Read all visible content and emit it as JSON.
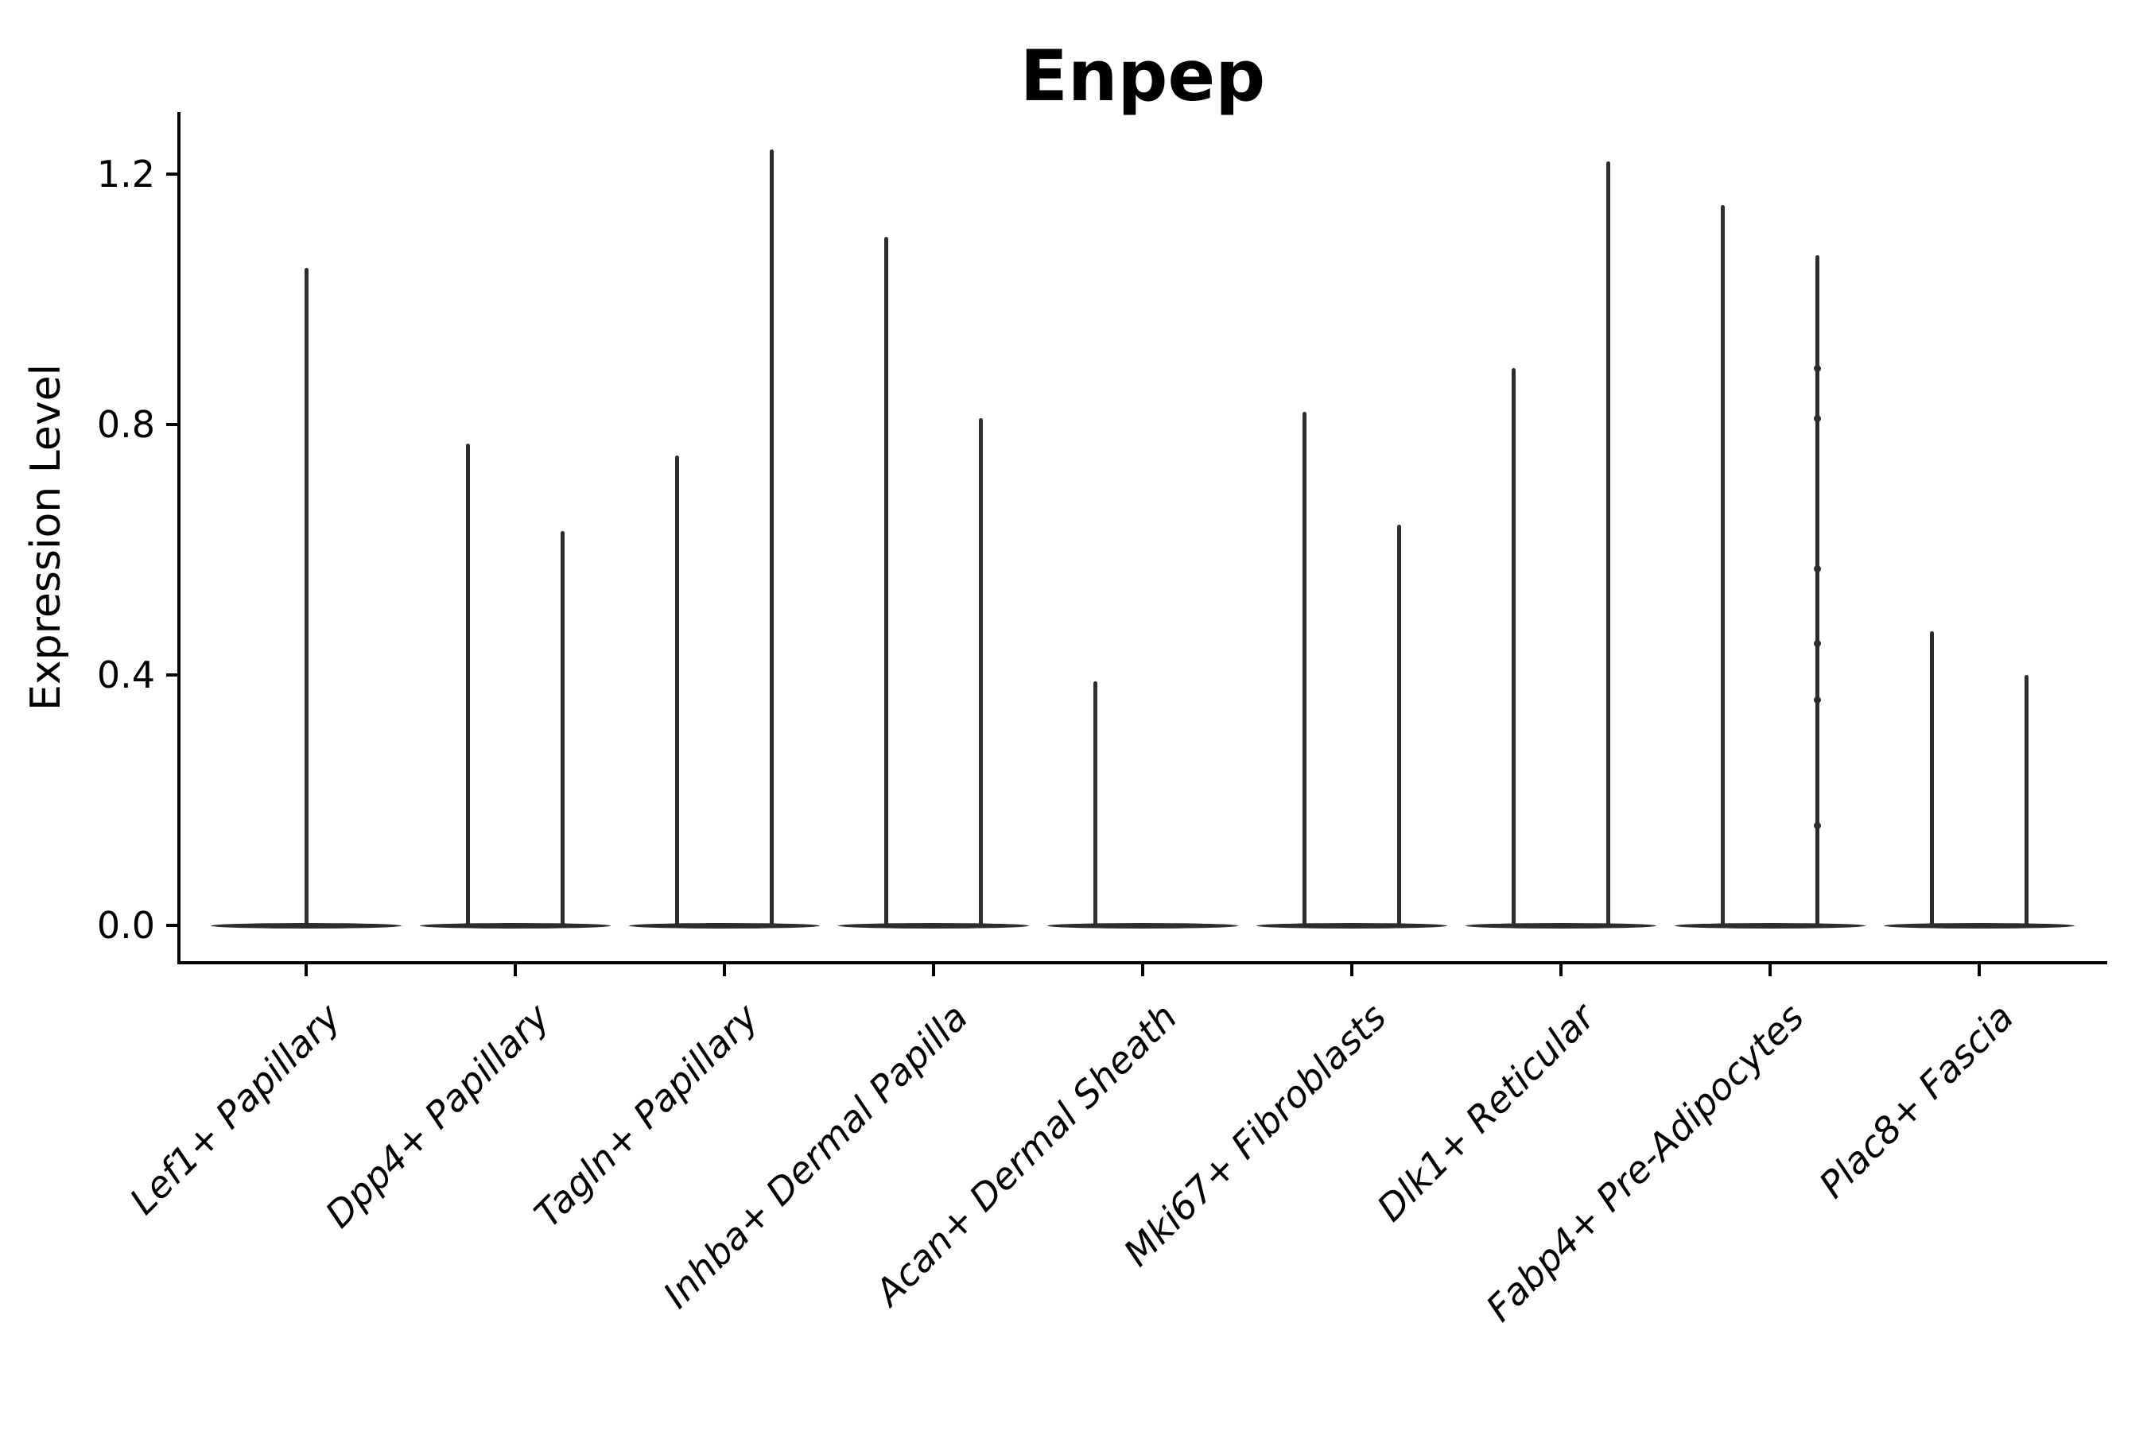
{
  "chart_data": {
    "type": "violin",
    "title": "Enpep",
    "xlabel": "",
    "ylabel": "Expression Level",
    "ylim": [
      -0.06,
      1.3
    ],
    "yticks": [
      0.0,
      0.4,
      0.8,
      1.2
    ],
    "ytick_labels": [
      "0.0",
      "0.4",
      "0.8",
      "1.2"
    ],
    "grid": false,
    "legend": "none",
    "ink_color": "#2d2d2d",
    "axis_color": "#000000",
    "categories": [
      "Lef1+ Papillary",
      "Dpp4+ Papillary",
      "Tagln+ Papillary",
      "Inhba+ Dermal Papilla",
      "Acan+ Dermal Sheath",
      "Mki67+ Fibroblasts",
      "Dlk1+ Reticular",
      "Fabp4+ Pre-Adipocytes",
      "Plac8+ Fascia"
    ],
    "violins": [
      {
        "category": "Lef1+ Papillary",
        "body_at": 0,
        "spikes": [
          {
            "group": "center",
            "max": 1.05
          }
        ]
      },
      {
        "category": "Dpp4+ Papillary",
        "body_at": 0,
        "spikes": [
          {
            "group": "left",
            "max": 0.77
          },
          {
            "group": "right",
            "max": 0.63
          }
        ]
      },
      {
        "category": "Tagln+ Papillary",
        "body_at": 0,
        "spikes": [
          {
            "group": "left",
            "max": 0.75
          },
          {
            "group": "right",
            "max": 1.24
          }
        ]
      },
      {
        "category": "Inhba+ Dermal Papilla",
        "body_at": 0,
        "spikes": [
          {
            "group": "left",
            "max": 1.1
          },
          {
            "group": "right",
            "max": 0.81
          }
        ]
      },
      {
        "category": "Acan+ Dermal Sheath",
        "body_at": 0,
        "spikes": [
          {
            "group": "left",
            "max": 0.39
          }
        ]
      },
      {
        "category": "Mki67+ Fibroblasts",
        "body_at": 0,
        "spikes": [
          {
            "group": "left",
            "max": 0.82
          },
          {
            "group": "right",
            "max": 0.64
          }
        ]
      },
      {
        "category": "Dlk1+ Reticular",
        "body_at": 0,
        "spikes": [
          {
            "group": "left",
            "max": 0.89
          },
          {
            "group": "right",
            "max": 1.22
          }
        ]
      },
      {
        "category": "Fabp4+ Pre-Adipocytes",
        "body_at": 0,
        "spikes": [
          {
            "group": "left",
            "max": 1.15
          },
          {
            "group": "right",
            "max": 1.07,
            "dots": [
              0.89,
              0.81,
              0.57,
              0.45,
              0.36,
              0.16
            ]
          }
        ]
      },
      {
        "category": "Plac8+ Fascia",
        "body_at": 0,
        "spikes": [
          {
            "group": "left",
            "max": 0.47
          },
          {
            "group": "right",
            "max": 0.4
          }
        ]
      }
    ]
  }
}
